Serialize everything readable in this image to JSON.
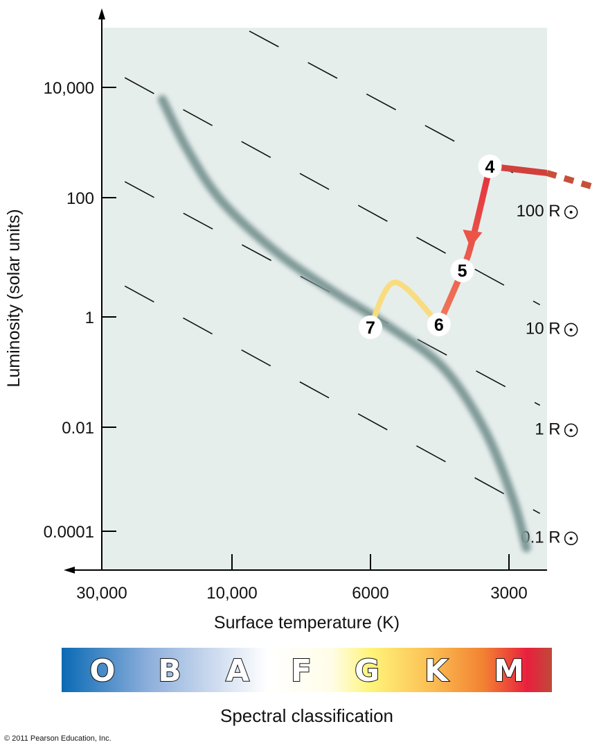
{
  "chart_data": {
    "type": "line",
    "title": "",
    "xlabel": "Surface temperature (K)",
    "ylabel": "Luminosity (solar units)",
    "x_scale": "log",
    "y_scale": "log",
    "x_reversed": true,
    "x_ticks": [
      {
        "value": 30000,
        "label": "30,000"
      },
      {
        "value": 10000,
        "label": "10,000"
      },
      {
        "value": 6000,
        "label": "6000"
      },
      {
        "value": 3000,
        "label": "3000"
      }
    ],
    "y_ticks": [
      {
        "value": 10000,
        "label": "10,000"
      },
      {
        "value": 100,
        "label": "100"
      },
      {
        "value": 1,
        "label": "1"
      },
      {
        "value": 0.01,
        "label": "0.01"
      },
      {
        "value": 0.0001,
        "label": "0.0001"
      }
    ],
    "grid": false,
    "main_sequence": [
      [
        18000,
        6000
      ],
      [
        14600,
        760
      ],
      [
        10900,
        87
      ],
      [
        8470,
        12
      ],
      [
        6900,
        2.7
      ],
      [
        5500,
        0.69
      ],
      [
        4170,
        0.12
      ],
      [
        3390,
        0.0089
      ],
      [
        2940,
        0.00041
      ],
      [
        2750,
        4.8e-05
      ]
    ],
    "radius_lines": [
      {
        "label": "100 R",
        "start": [
          9380,
          105000
        ],
        "end": [
          2570,
          155
        ]
      },
      {
        "label": "10 R",
        "start": [
          24700,
          15000
        ],
        "end": [
          2570,
          1.6
        ]
      },
      {
        "label": "1 R",
        "start": [
          24700,
          195
        ],
        "end": [
          2570,
          0.025
        ]
      },
      {
        "label": "0.1 R",
        "start": [
          24700,
          3.3
        ],
        "end": [
          2570,
          0.00022
        ]
      }
    ],
    "evolution_track": {
      "segment_7_6": [
        [
          6000,
          0.65
        ],
        [
          5310,
          3.8
        ],
        [
          4260,
          0.73
        ]
      ],
      "segment_6_4": [
        [
          4260,
          0.73
        ],
        [
          3790,
          6.0
        ],
        [
          3600,
          20
        ],
        [
          3300,
          370
        ]
      ],
      "segment_4_out": [
        [
          3300,
          370
        ],
        [
          2480,
          280
        ]
      ],
      "segment_dotted": [
        [
          2480,
          280
        ],
        [
          1960,
          155
        ]
      ],
      "stages": [
        {
          "label": "4",
          "T": 3300,
          "L": 370
        },
        {
          "label": "5",
          "T": 3790,
          "L": 6.0
        },
        {
          "label": "6",
          "T": 4260,
          "L": 0.73
        },
        {
          "label": "7",
          "T": 6000,
          "L": 0.65
        }
      ]
    },
    "colors": {
      "plot_bg": "#e6eeec",
      "main_sequence": "#7f9a98",
      "track_red": "#e53a3a",
      "track_orange": "#f07050",
      "track_yellow": "#f8dc80",
      "dotted": "#c8503a"
    }
  },
  "spectral": {
    "label": "Spectral classification",
    "classes": [
      "O",
      "B",
      "A",
      "F",
      "G",
      "K",
      "M"
    ]
  },
  "copyright": "© 2011 Pearson Education, Inc."
}
